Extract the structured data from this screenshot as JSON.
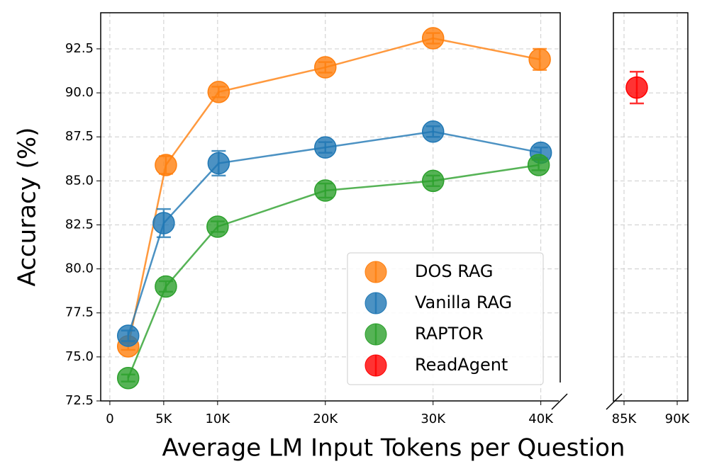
{
  "chart_data": [
    {
      "type": "line",
      "xlabel": "Average LM Input Tokens per Question",
      "ylabel": "Accuracy (%)",
      "xlim": [
        -850,
        41800
      ],
      "ylim": [
        72.5,
        94.55
      ],
      "xticks": [
        0,
        {
          "value": 5000,
          "label": "5K"
        },
        {
          "value": 10000,
          "label": "10K"
        },
        {
          "value": 20000,
          "label": "20K"
        },
        {
          "value": 30000,
          "label": "30K"
        },
        {
          "value": 40000,
          "label": "40K"
        }
      ],
      "yticks": [
        72.5,
        {
          "value": 75,
          "label": "75.0"
        },
        77.5,
        {
          "value": 80,
          "label": "80.0"
        },
        82.5,
        {
          "value": 85,
          "label": "85.0"
        },
        87.5,
        {
          "value": 90,
          "label": "90.0"
        },
        92.5
      ],
      "grid": true,
      "legend": "lower right",
      "series": [
        {
          "name": "DOS RAG",
          "color": "#ff7f0e",
          "x": [
            1700,
            5200,
            10100,
            20000,
            30000,
            39900
          ],
          "values": [
            75.6,
            85.9,
            90.05,
            91.45,
            93.1,
            91.9
          ],
          "errors": [
            0.2,
            0.5,
            0.3,
            0.3,
            0.3,
            0.6
          ]
        },
        {
          "name": "Vanilla RAG",
          "color": "#1f77b4",
          "x": [
            1700,
            5000,
            10100,
            20000,
            30000,
            40000
          ],
          "values": [
            76.2,
            82.6,
            86.0,
            86.9,
            87.8,
            86.6
          ],
          "errors": [
            0.3,
            0.8,
            0.7,
            0.3,
            0.3,
            0.3
          ]
        },
        {
          "name": "RAPTOR",
          "color": "#2ca02c",
          "x": [
            1700,
            5200,
            10000,
            20000,
            30000,
            39800
          ],
          "values": [
            73.8,
            79.0,
            82.4,
            84.45,
            85.0,
            85.9
          ],
          "errors": [
            0.2,
            0.3,
            0.3,
            0.4,
            0.3,
            0.3
          ]
        }
      ]
    },
    {
      "type": "scatter",
      "xlim": [
        84000,
        91000
      ],
      "ylim": [
        72.5,
        94.55
      ],
      "xticks": [
        {
          "value": 85000,
          "label": "85K"
        },
        {
          "value": 90000,
          "label": "90K"
        }
      ],
      "grid": true,
      "series": [
        {
          "name": "ReadAgent",
          "color": "#ff0000",
          "x": [
            86200
          ],
          "values": [
            90.3
          ],
          "errors": [
            0.9
          ]
        }
      ]
    }
  ]
}
